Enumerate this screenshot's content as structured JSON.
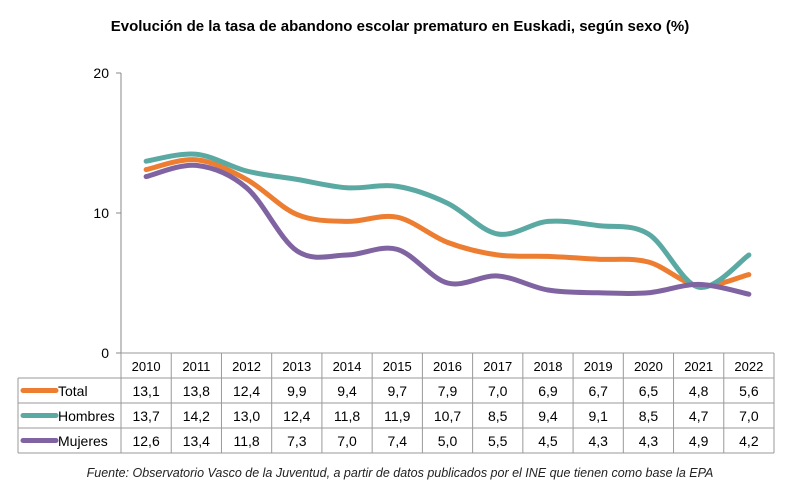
{
  "chart_data": {
    "type": "line",
    "title": "Evolución de la tasa de abandono escolar prematuro en Euskadi, según sexo (%)",
    "categories": [
      "2010",
      "2011",
      "2012",
      "2013",
      "2014",
      "2015",
      "2016",
      "2017",
      "2018",
      "2019",
      "2020",
      "2021",
      "2022"
    ],
    "yticks": [
      "0",
      "10",
      "20"
    ],
    "ylim": [
      0,
      20
    ],
    "grid": false,
    "legend": "table-below",
    "series": [
      {
        "name": "Total",
        "color": "#ED7D31",
        "values": [
          13.1,
          13.8,
          12.4,
          9.9,
          9.4,
          9.7,
          7.9,
          7.0,
          6.9,
          6.7,
          6.5,
          4.8,
          5.6
        ],
        "labels": [
          "13,1",
          "13,8",
          "12,4",
          "9,9",
          "9,4",
          "9,7",
          "7,9",
          "7,0",
          "6,9",
          "6,7",
          "6,5",
          "4,8",
          "5,6"
        ]
      },
      {
        "name": "Hombres",
        "color": "#5BA9A3",
        "values": [
          13.7,
          14.2,
          13.0,
          12.4,
          11.8,
          11.9,
          10.7,
          8.5,
          9.4,
          9.1,
          8.5,
          4.7,
          7.0
        ],
        "labels": [
          "13,7",
          "14,2",
          "13,0",
          "12,4",
          "11,8",
          "11,9",
          "10,7",
          "8,5",
          "9,4",
          "9,1",
          "8,5",
          "4,7",
          "7,0"
        ]
      },
      {
        "name": "Mujeres",
        "color": "#8064A2",
        "values": [
          12.6,
          13.4,
          11.8,
          7.3,
          7.0,
          7.4,
          5.0,
          5.5,
          4.5,
          4.3,
          4.3,
          4.9,
          4.2
        ],
        "labels": [
          "12,6",
          "13,4",
          "11,8",
          "7,3",
          "7,0",
          "7,4",
          "5,0",
          "5,5",
          "4,5",
          "4,3",
          "4,3",
          "4,9",
          "4,2"
        ]
      }
    ],
    "source": "Fuente: Observatorio Vasco de la Juventud, a partir de datos publicados por el INE que tienen como base la EPA"
  }
}
